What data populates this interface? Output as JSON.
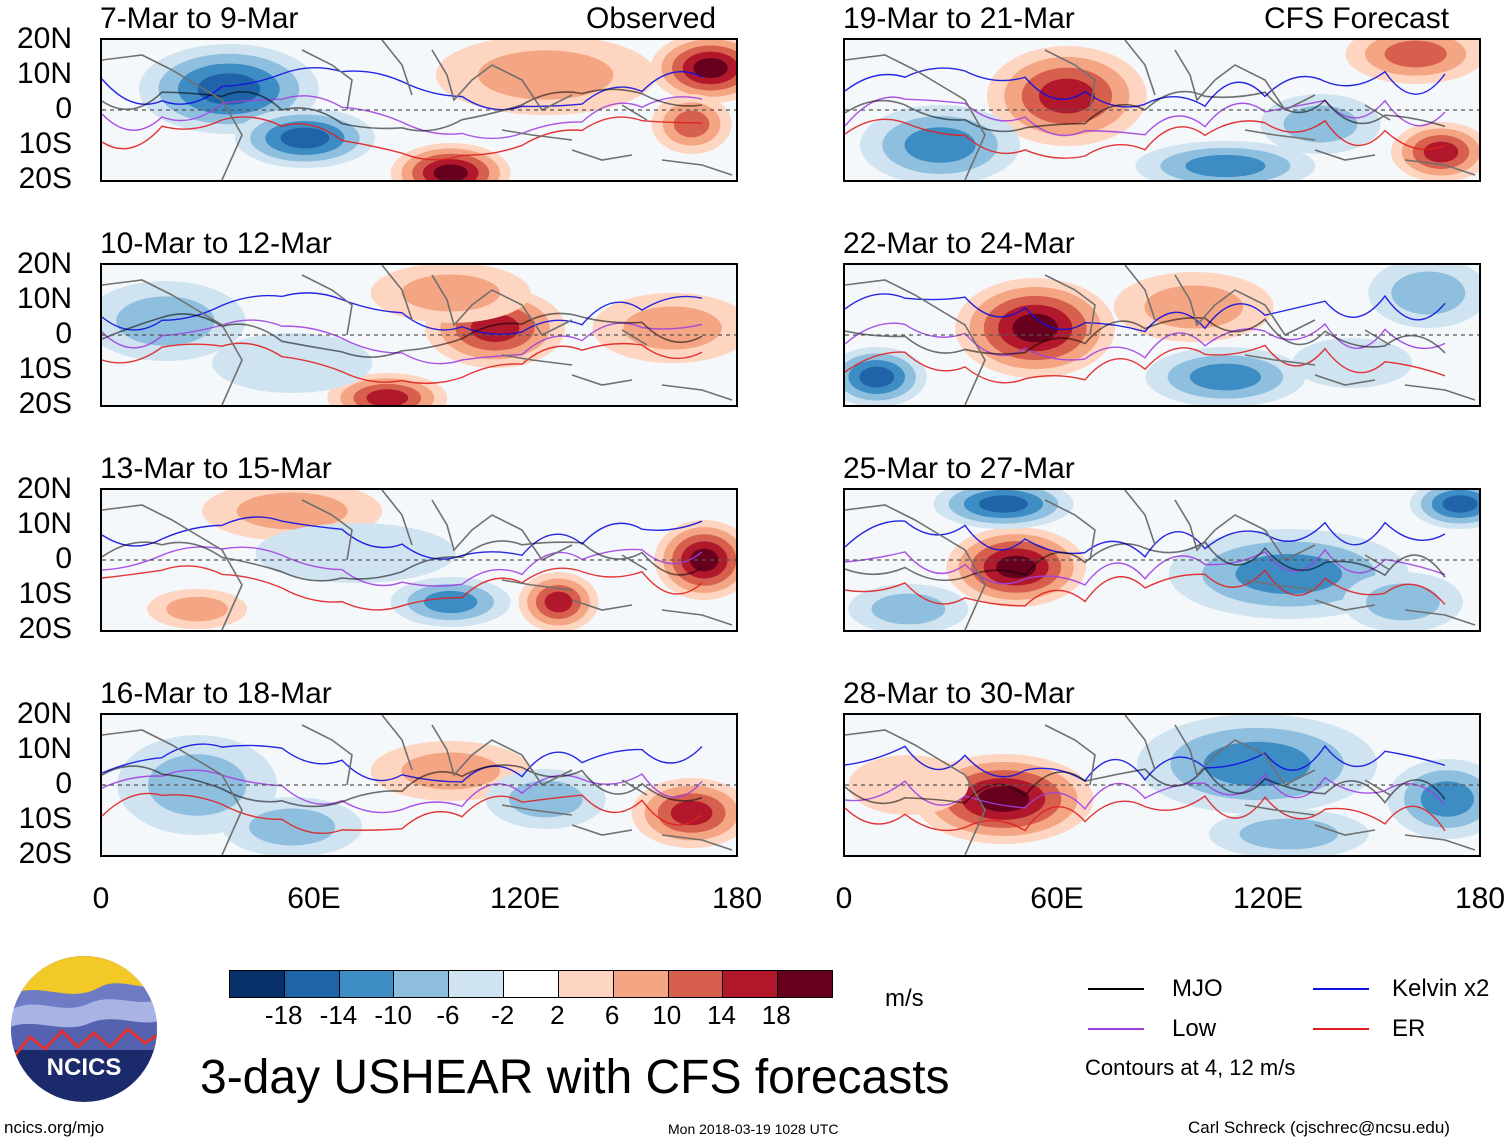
{
  "header": {
    "observed_label": "Observed",
    "forecast_label": "CFS Forecast"
  },
  "panels_left": [
    {
      "title": "7-Mar to 9-Mar"
    },
    {
      "title": "10-Mar to 12-Mar"
    },
    {
      "title": "13-Mar to 15-Mar"
    },
    {
      "title": "16-Mar to 18-Mar"
    }
  ],
  "panels_right": [
    {
      "title": "19-Mar to 21-Mar"
    },
    {
      "title": "22-Mar to 24-Mar"
    },
    {
      "title": "25-Mar to 27-Mar"
    },
    {
      "title": "28-Mar to 30-Mar"
    }
  ],
  "lat_labels": [
    "20N",
    "10N",
    "0",
    "10S",
    "20S"
  ],
  "lon_labels": [
    "0",
    "60E",
    "120E",
    "180"
  ],
  "colorbar": {
    "colors": [
      "#08306b",
      "#1f63a8",
      "#3d8cc4",
      "#8fbfde",
      "#cfe3f0",
      "#ffffff",
      "#fdd5c0",
      "#f4a583",
      "#d6604d",
      "#b2182b",
      "#67001f"
    ],
    "labels": [
      "-18",
      "-14",
      "-10",
      "-6",
      "-2",
      "2",
      "6",
      "10",
      "14",
      "18"
    ],
    "units": "m/s"
  },
  "legend": {
    "items": [
      {
        "label": "MJO",
        "color": "#000000"
      },
      {
        "label": "Kelvin x2",
        "color": "#1010e0"
      },
      {
        "label": "Low",
        "color": "#a040e0"
      },
      {
        "label": "ER",
        "color": "#e02020"
      }
    ],
    "note": "Contours at 4, 12 m/s"
  },
  "logo_text": "NCICS",
  "title": "3-day USHEAR with CFS forecasts",
  "footer": {
    "url": "ncics.org/mjo",
    "timestamp": "Mon 2018-03-19 1028 UTC",
    "credit": "Carl Schreck (cjschrec@ncsu.edu)"
  }
}
